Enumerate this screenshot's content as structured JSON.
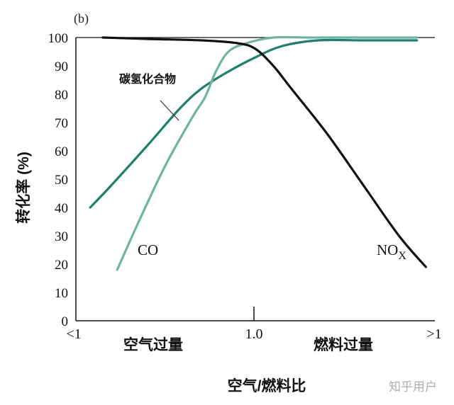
{
  "chart_data": {
    "type": "line",
    "panel_label": "(b)",
    "ylabel": "转化率 (%)",
    "xlabel": "空气/燃料比",
    "xticks": [
      "<1",
      "1.0",
      ">1"
    ],
    "region_labels": {
      "left": "空气过量",
      "right": "燃料过量"
    },
    "ylim": [
      0,
      100
    ],
    "yticks": [
      "0",
      "10",
      "20",
      "30",
      "40",
      "50",
      "60",
      "70",
      "80",
      "90",
      "100"
    ],
    "x_scale_note": "x expressed relative to 1.0 stoichiometric point; range [-1, 1]",
    "xlim": [
      -1.0,
      1.0
    ],
    "grid": false,
    "series": [
      {
        "name": "碳氢化合物",
        "color": "#1e7f6a",
        "x": [
          -0.92,
          -0.8,
          -0.6,
          -0.42,
          -0.3,
          -0.15,
          0.0,
          0.15,
          0.35,
          0.6,
          0.9
        ],
        "y": [
          40,
          48,
          62,
          75,
          82,
          88,
          93,
          97,
          99,
          99,
          99
        ]
      },
      {
        "name": "CO",
        "color": "#6fb3a3",
        "x": [
          -0.77,
          -0.65,
          -0.5,
          -0.35,
          -0.28,
          -0.22,
          -0.15,
          -0.05,
          0.1,
          0.3,
          0.6,
          0.9
        ],
        "y": [
          18,
          35,
          55,
          72,
          79,
          88,
          95,
          98,
          100,
          100,
          100,
          100
        ]
      },
      {
        "name": "NOX",
        "display_label": "NOX",
        "color": "#111111",
        "x": [
          -0.85,
          -0.6,
          -0.3,
          -0.1,
          0.0,
          0.1,
          0.2,
          0.4,
          0.6,
          0.8,
          0.95
        ],
        "y": [
          100,
          99.5,
          99,
          98,
          96,
          90,
          82,
          66,
          48,
          30,
          19
        ]
      }
    ],
    "annotations": [
      {
        "text": "碳氢化合物",
        "target_series": "碳氢化合物"
      },
      {
        "text": "CO",
        "target_series": "CO"
      },
      {
        "text": "NO",
        "subscript": "X",
        "target_series": "NOX"
      }
    ]
  },
  "watermark": "知乎用户"
}
